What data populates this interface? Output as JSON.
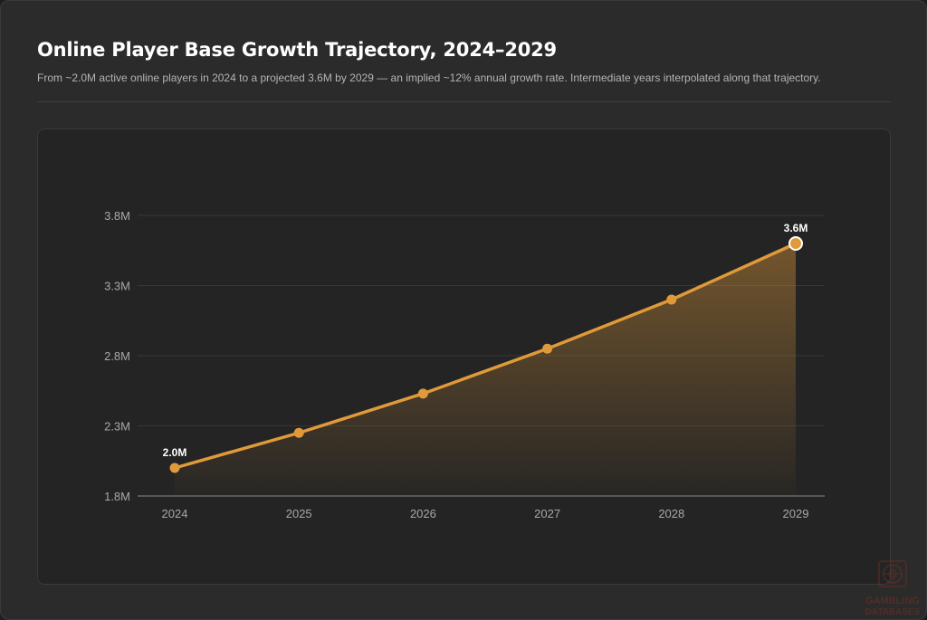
{
  "header": {
    "title": "Online Player Base Growth Trajectory, 2024–2029",
    "subtitle": "From ~2.0M active online players in 2024 to a projected 3.6M by 2029 — an implied ~12% annual growth rate. Intermediate years interpolated along that trajectory."
  },
  "chart_data": {
    "type": "area",
    "title": "Online Player Base Growth Trajectory, 2024–2029",
    "x": [
      "2024",
      "2025",
      "2026",
      "2027",
      "2028",
      "2029"
    ],
    "series": [
      {
        "values": [
          2.0,
          2.25,
          2.53,
          2.85,
          3.2,
          3.6
        ]
      }
    ],
    "y_ticks": [
      "1.8M",
      "2.3M",
      "2.8M",
      "3.3M",
      "3.8M"
    ],
    "y_tick_values": [
      1.8,
      2.3,
      2.8,
      3.3,
      3.8
    ],
    "ylim": [
      1.8,
      3.8
    ],
    "data_labels": [
      {
        "index": 0,
        "text": "2.0M"
      },
      {
        "index": 5,
        "text": "3.6M"
      }
    ],
    "grid": true,
    "legend": "none",
    "line_color": "#e09a3a"
  },
  "watermark": {
    "text_line1": "GAMBLING",
    "text_line2": "DATABASES",
    "icon": "roulette-wheel-icon"
  }
}
